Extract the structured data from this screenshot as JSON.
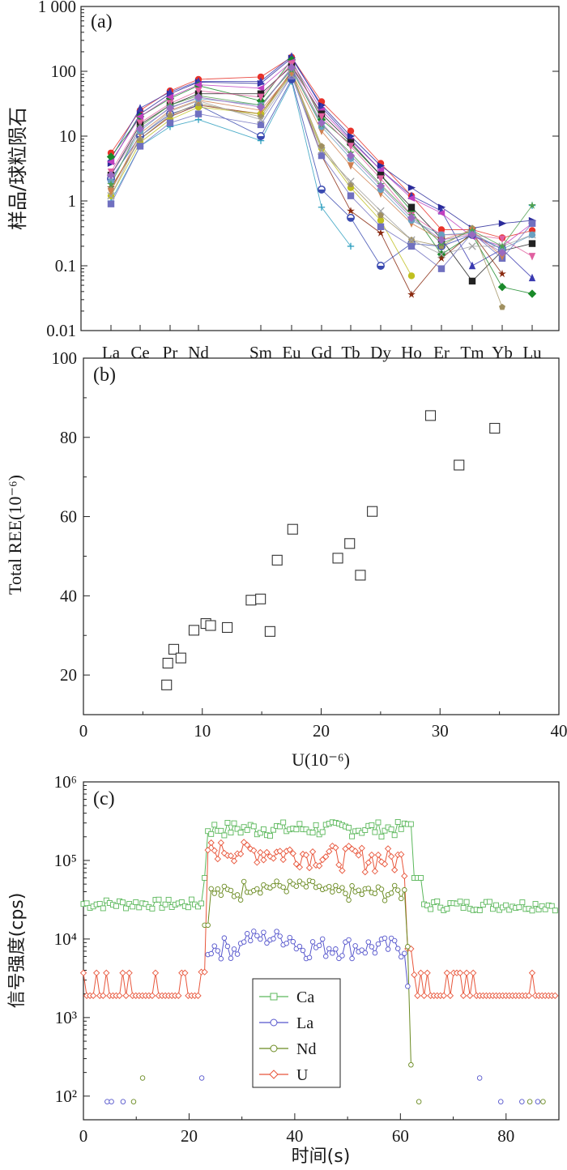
{
  "chart_data": [
    {
      "panel": "(a)",
      "type": "line",
      "ylabel": "样品/球粒陨石",
      "yscale": "log",
      "ylim": [
        0.01,
        1000
      ],
      "yticks": [
        "0.01",
        "0.1",
        "1",
        "10",
        "100",
        "1 000"
      ],
      "categories": [
        "La",
        "Ce",
        "Pr",
        "Nd",
        "Sm",
        "Eu",
        "Gd",
        "Tb",
        "Dy",
        "Ho",
        "Er",
        "Tm",
        "Yb",
        "Lu"
      ],
      "series": [
        {
          "color": "#e8322a",
          "marker": "circle",
          "values": [
            5.5,
            25,
            50,
            75,
            82,
            165,
            34,
            12,
            3.8,
            1.2,
            0.36,
            0.36,
            0.27,
            0.35
          ]
        },
        {
          "color": "#2a2a9a",
          "marker": "triangle-right",
          "values": [
            3.8,
            22,
            45,
            68,
            65,
            160,
            30,
            10,
            3.5,
            1.6,
            0.8,
            0.38,
            0.45,
            0.5
          ]
        },
        {
          "color": "#3a3ab0",
          "marker": "triangle-up",
          "values": [
            4.5,
            27,
            48,
            70,
            70,
            170,
            28,
            9,
            3.0,
            1.2,
            0.7,
            0.1,
            0.18,
            0.065
          ]
        },
        {
          "color": "#1a8a2a",
          "marker": "diamond",
          "values": [
            4.8,
            20,
            38,
            60,
            35,
            150,
            18,
            7.5,
            2.5,
            0.7,
            0.15,
            0.3,
            0.047,
            0.037
          ]
        },
        {
          "color": "#c040c0",
          "marker": "triangle-left",
          "values": [
            4.0,
            20,
            40,
            62,
            55,
            140,
            25,
            8.5,
            3.0,
            1.1,
            0.65,
            0.28,
            0.2,
            0.45
          ]
        },
        {
          "color": "#222222",
          "marker": "square",
          "values": [
            2.5,
            15,
            30,
            45,
            45,
            120,
            22,
            8,
            2.5,
            0.8,
            0.26,
            0.058,
            0.17,
            0.22
          ]
        },
        {
          "color": "#e060a0",
          "marker": "triangle-down",
          "values": [
            2.8,
            16,
            32,
            50,
            40,
            130,
            20,
            7,
            2.2,
            0.6,
            0.3,
            0.3,
            0.26,
            0.14
          ]
        },
        {
          "color": "#30a0c0",
          "marker": "plus",
          "values": [
            1.0,
            7,
            14,
            18,
            8.5,
            70,
            0.8,
            0.2,
            null,
            null,
            null,
            null,
            null,
            0.85
          ]
        },
        {
          "color": "#8a2a10",
          "marker": "star",
          "values": [
            1.6,
            9,
            20,
            30,
            22,
            100,
            5,
            0.7,
            0.32,
            0.036,
            0.13,
            0.32,
            0.075,
            null
          ]
        },
        {
          "color": "#3a4ab0",
          "marker": "half-circle",
          "values": [
            2.2,
            10,
            22,
            30,
            10,
            75,
            1.5,
            0.55,
            0.1,
            0.22,
            0.2,
            0.3,
            0.18,
            null
          ]
        },
        {
          "color": "#c0c020",
          "marker": "circle",
          "values": [
            1.2,
            8,
            18,
            28,
            22,
            90,
            6.5,
            1.6,
            0.5,
            0.07,
            null,
            null,
            null,
            null
          ]
        },
        {
          "color": "#7070c0",
          "marker": "square",
          "values": [
            0.9,
            7,
            16,
            22,
            15,
            85,
            5,
            1.2,
            0.4,
            0.2,
            0.09,
            0.32,
            0.13,
            0.45
          ]
        },
        {
          "color": "#a09060",
          "marker": "pentagon",
          "values": [
            1.5,
            9,
            21,
            32,
            20,
            95,
            7,
            1.8,
            0.6,
            0.25,
            0.2,
            0.38,
            0.023,
            null
          ]
        },
        {
          "color": "#a0a0a0",
          "marker": "x",
          "values": [
            1.2,
            10,
            24,
            35,
            18,
            88,
            6,
            2.0,
            0.7,
            0.25,
            0.15,
            0.2,
            0.2,
            0.3
          ]
        },
        {
          "color": "#d08050",
          "marker": "triangle-down",
          "values": [
            1.4,
            11,
            25,
            36,
            25,
            95,
            12,
            3.5,
            1.3,
            0.45,
            0.25,
            0.35,
            0.14,
            null
          ]
        },
        {
          "color": "#6aa0c0",
          "marker": "circle",
          "values": [
            2.0,
            12,
            28,
            38,
            30,
            110,
            14,
            4.5,
            1.5,
            0.5,
            0.3,
            0.32,
            0.18,
            0.3
          ]
        },
        {
          "color": "#50a050",
          "marker": "star",
          "values": [
            1.8,
            14,
            30,
            42,
            30,
            105,
            15,
            5.5,
            1.8,
            0.6,
            0.22,
            0.35,
            0.2,
            0.85
          ]
        },
        {
          "color": "#9a6ac0",
          "marker": "diamond",
          "values": [
            2.5,
            13,
            27,
            40,
            28,
            115,
            16,
            5,
            1.7,
            0.55,
            0.25,
            0.3,
            0.16,
            null
          ]
        }
      ]
    },
    {
      "panel": "(b)",
      "type": "scatter",
      "xlabel": "U(10⁻⁶)",
      "ylabel": "Total REE(10⁻⁶)",
      "xlim": [
        0,
        40
      ],
      "ylim": [
        10,
        100
      ],
      "xticks": [
        "0",
        "10",
        "20",
        "30",
        "40"
      ],
      "yticks": [
        "20",
        "40",
        "60",
        "80",
        "100"
      ],
      "points": [
        {
          "x": 7.0,
          "y": 17.5
        },
        {
          "x": 7.1,
          "y": 23.0
        },
        {
          "x": 7.6,
          "y": 26.5
        },
        {
          "x": 8.2,
          "y": 24.3
        },
        {
          "x": 9.3,
          "y": 31.3
        },
        {
          "x": 10.3,
          "y": 33.0
        },
        {
          "x": 10.7,
          "y": 32.5
        },
        {
          "x": 12.1,
          "y": 32.0
        },
        {
          "x": 14.1,
          "y": 38.9
        },
        {
          "x": 14.9,
          "y": 39.2
        },
        {
          "x": 15.7,
          "y": 31.0
        },
        {
          "x": 16.3,
          "y": 49.0
        },
        {
          "x": 17.6,
          "y": 56.8
        },
        {
          "x": 21.4,
          "y": 49.5
        },
        {
          "x": 22.4,
          "y": 53.2
        },
        {
          "x": 23.3,
          "y": 45.2
        },
        {
          "x": 24.3,
          "y": 61.3
        },
        {
          "x": 29.2,
          "y": 85.5
        },
        {
          "x": 31.6,
          "y": 73.0
        },
        {
          "x": 34.6,
          "y": 82.3
        }
      ]
    },
    {
      "panel": "(c)",
      "type": "line",
      "xlabel": "时间(s)",
      "ylabel": "信号强度(cps)",
      "yscale": "log",
      "xlim": [
        0,
        90
      ],
      "ylim": [
        50,
        1000000
      ],
      "xticks": [
        "0",
        "20",
        "40",
        "60",
        "80"
      ],
      "yticks": [
        "10²",
        "10³",
        "10⁴",
        "10⁵",
        "10⁶"
      ],
      "legend": "center-left",
      "series": [
        {
          "name": "Ca",
          "color": "#5cb85c",
          "marker": "square"
        },
        {
          "name": "La",
          "color": "#5555cc",
          "marker": "circle"
        },
        {
          "name": "Nd",
          "color": "#6a8a20",
          "marker": "circle"
        },
        {
          "name": "U",
          "color": "#e8553a",
          "marker": "diamond"
        }
      ]
    }
  ]
}
